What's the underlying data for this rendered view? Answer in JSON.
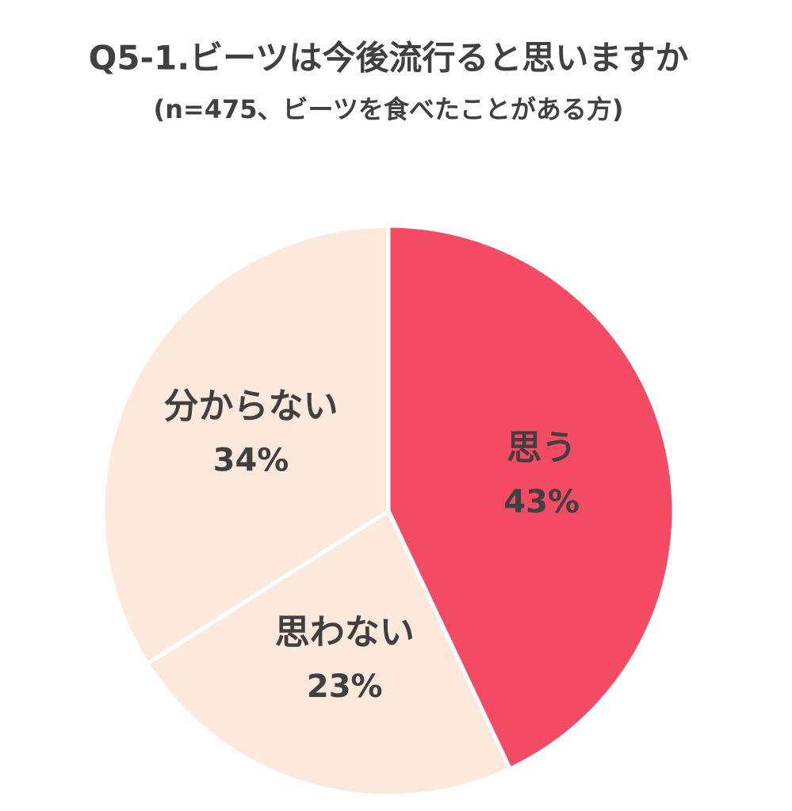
{
  "chart_data": {
    "type": "pie",
    "title": "Q5-1.ビーツは今後流行ると思いますか",
    "subtitle": "(n=475、ビーツを食べたことがある方)",
    "categories": [
      "思う",
      "思わない",
      "分からない"
    ],
    "values": [
      43,
      23,
      34
    ],
    "value_labels": [
      "43%",
      "23%",
      "34%"
    ],
    "colors": [
      "#f54a64",
      "#fde9dc",
      "#fde9dc"
    ]
  }
}
